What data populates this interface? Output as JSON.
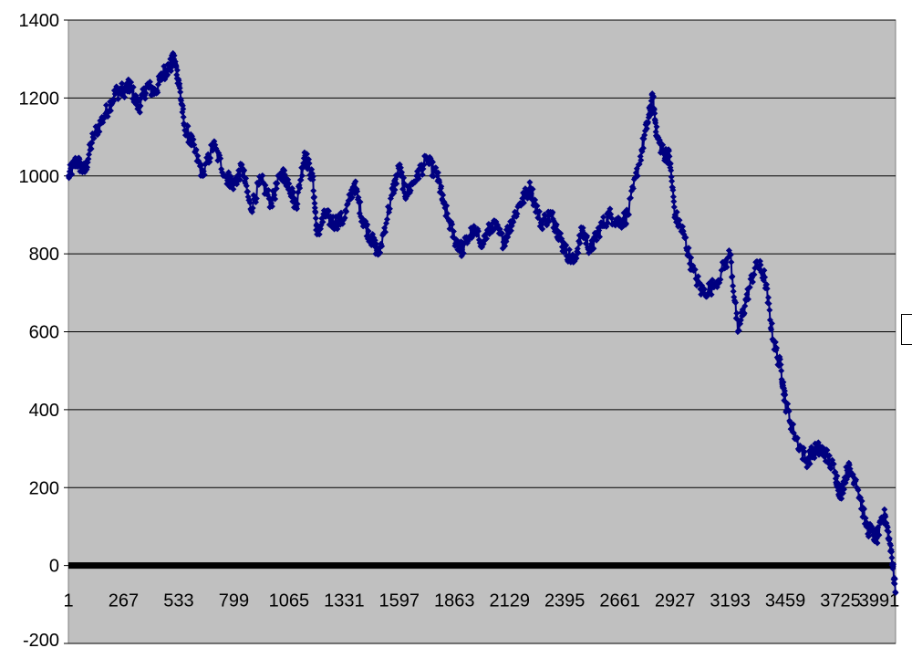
{
  "chart_data": {
    "type": "line",
    "title": "",
    "xlabel": "",
    "ylabel": "",
    "x_tick_labels": [
      "1",
      "267",
      "533",
      "799",
      "1065",
      "1331",
      "1597",
      "1863",
      "2129",
      "2395",
      "2661",
      "2927",
      "3193",
      "3459",
      "3725",
      "3991"
    ],
    "y_tick_labels": [
      "-200",
      "0",
      "200",
      "400",
      "600",
      "800",
      "1000",
      "1200",
      "1400"
    ],
    "xlim": [
      1,
      3991
    ],
    "ylim": [
      -200,
      1400
    ],
    "grid": true,
    "legend": "right (partially visible)",
    "colors": {
      "plot_background": "#c0c0c0",
      "series": "#000080",
      "zero_line": "#000000",
      "gridline": "#000000"
    },
    "series": [
      {
        "name": "",
        "marker": "diamond",
        "points": [
          [
            1,
            1000
          ],
          [
            40,
            1040
          ],
          [
            80,
            1010
          ],
          [
            120,
            1100
          ],
          [
            180,
            1160
          ],
          [
            230,
            1215
          ],
          [
            267,
            1220
          ],
          [
            300,
            1230
          ],
          [
            340,
            1175
          ],
          [
            380,
            1230
          ],
          [
            420,
            1215
          ],
          [
            460,
            1265
          ],
          [
            490,
            1280
          ],
          [
            510,
            1300
          ],
          [
            533,
            1245
          ],
          [
            560,
            1130
          ],
          [
            600,
            1080
          ],
          [
            650,
            1000
          ],
          [
            700,
            1080
          ],
          [
            760,
            1000
          ],
          [
            799,
            980
          ],
          [
            840,
            1020
          ],
          [
            880,
            915
          ],
          [
            930,
            990
          ],
          [
            980,
            930
          ],
          [
            1030,
            1010
          ],
          [
            1065,
            980
          ],
          [
            1100,
            920
          ],
          [
            1140,
            1060
          ],
          [
            1180,
            990
          ],
          [
            1200,
            850
          ],
          [
            1240,
            900
          ],
          [
            1280,
            880
          ],
          [
            1331,
            890
          ],
          [
            1380,
            980
          ],
          [
            1420,
            890
          ],
          [
            1460,
            840
          ],
          [
            1500,
            800
          ],
          [
            1560,
            950
          ],
          [
            1597,
            1020
          ],
          [
            1630,
            950
          ],
          [
            1680,
            1000
          ],
          [
            1730,
            1040
          ],
          [
            1780,
            1000
          ],
          [
            1810,
            930
          ],
          [
            1863,
            840
          ],
          [
            1900,
            810
          ],
          [
            1950,
            860
          ],
          [
            2000,
            830
          ],
          [
            2050,
            880
          ],
          [
            2100,
            830
          ],
          [
            2129,
            870
          ],
          [
            2180,
            930
          ],
          [
            2230,
            970
          ],
          [
            2280,
            880
          ],
          [
            2330,
            900
          ],
          [
            2360,
            860
          ],
          [
            2395,
            810
          ],
          [
            2440,
            780
          ],
          [
            2480,
            860
          ],
          [
            2520,
            810
          ],
          [
            2560,
            860
          ],
          [
            2610,
            900
          ],
          [
            2661,
            880
          ],
          [
            2700,
            900
          ],
          [
            2760,
            1050
          ],
          [
            2800,
            1150
          ],
          [
            2820,
            1200
          ],
          [
            2840,
            1100
          ],
          [
            2870,
            1060
          ],
          [
            2900,
            1050
          ],
          [
            2927,
            900
          ],
          [
            2970,
            850
          ],
          [
            3010,
            760
          ],
          [
            3060,
            700
          ],
          [
            3120,
            720
          ],
          [
            3193,
            800
          ],
          [
            3230,
            600
          ],
          [
            3270,
            680
          ],
          [
            3320,
            780
          ],
          [
            3360,
            740
          ],
          [
            3400,
            580
          ],
          [
            3440,
            500
          ],
          [
            3459,
            420
          ],
          [
            3500,
            340
          ],
          [
            3560,
            270
          ],
          [
            3610,
            300
          ],
          [
            3650,
            290
          ],
          [
            3700,
            240
          ],
          [
            3725,
            180
          ],
          [
            3760,
            250
          ],
          [
            3800,
            220
          ],
          [
            3850,
            100
          ],
          [
            3900,
            70
          ],
          [
            3940,
            130
          ],
          [
            3970,
            40
          ],
          [
            3991,
            -70
          ]
        ]
      }
    ]
  }
}
